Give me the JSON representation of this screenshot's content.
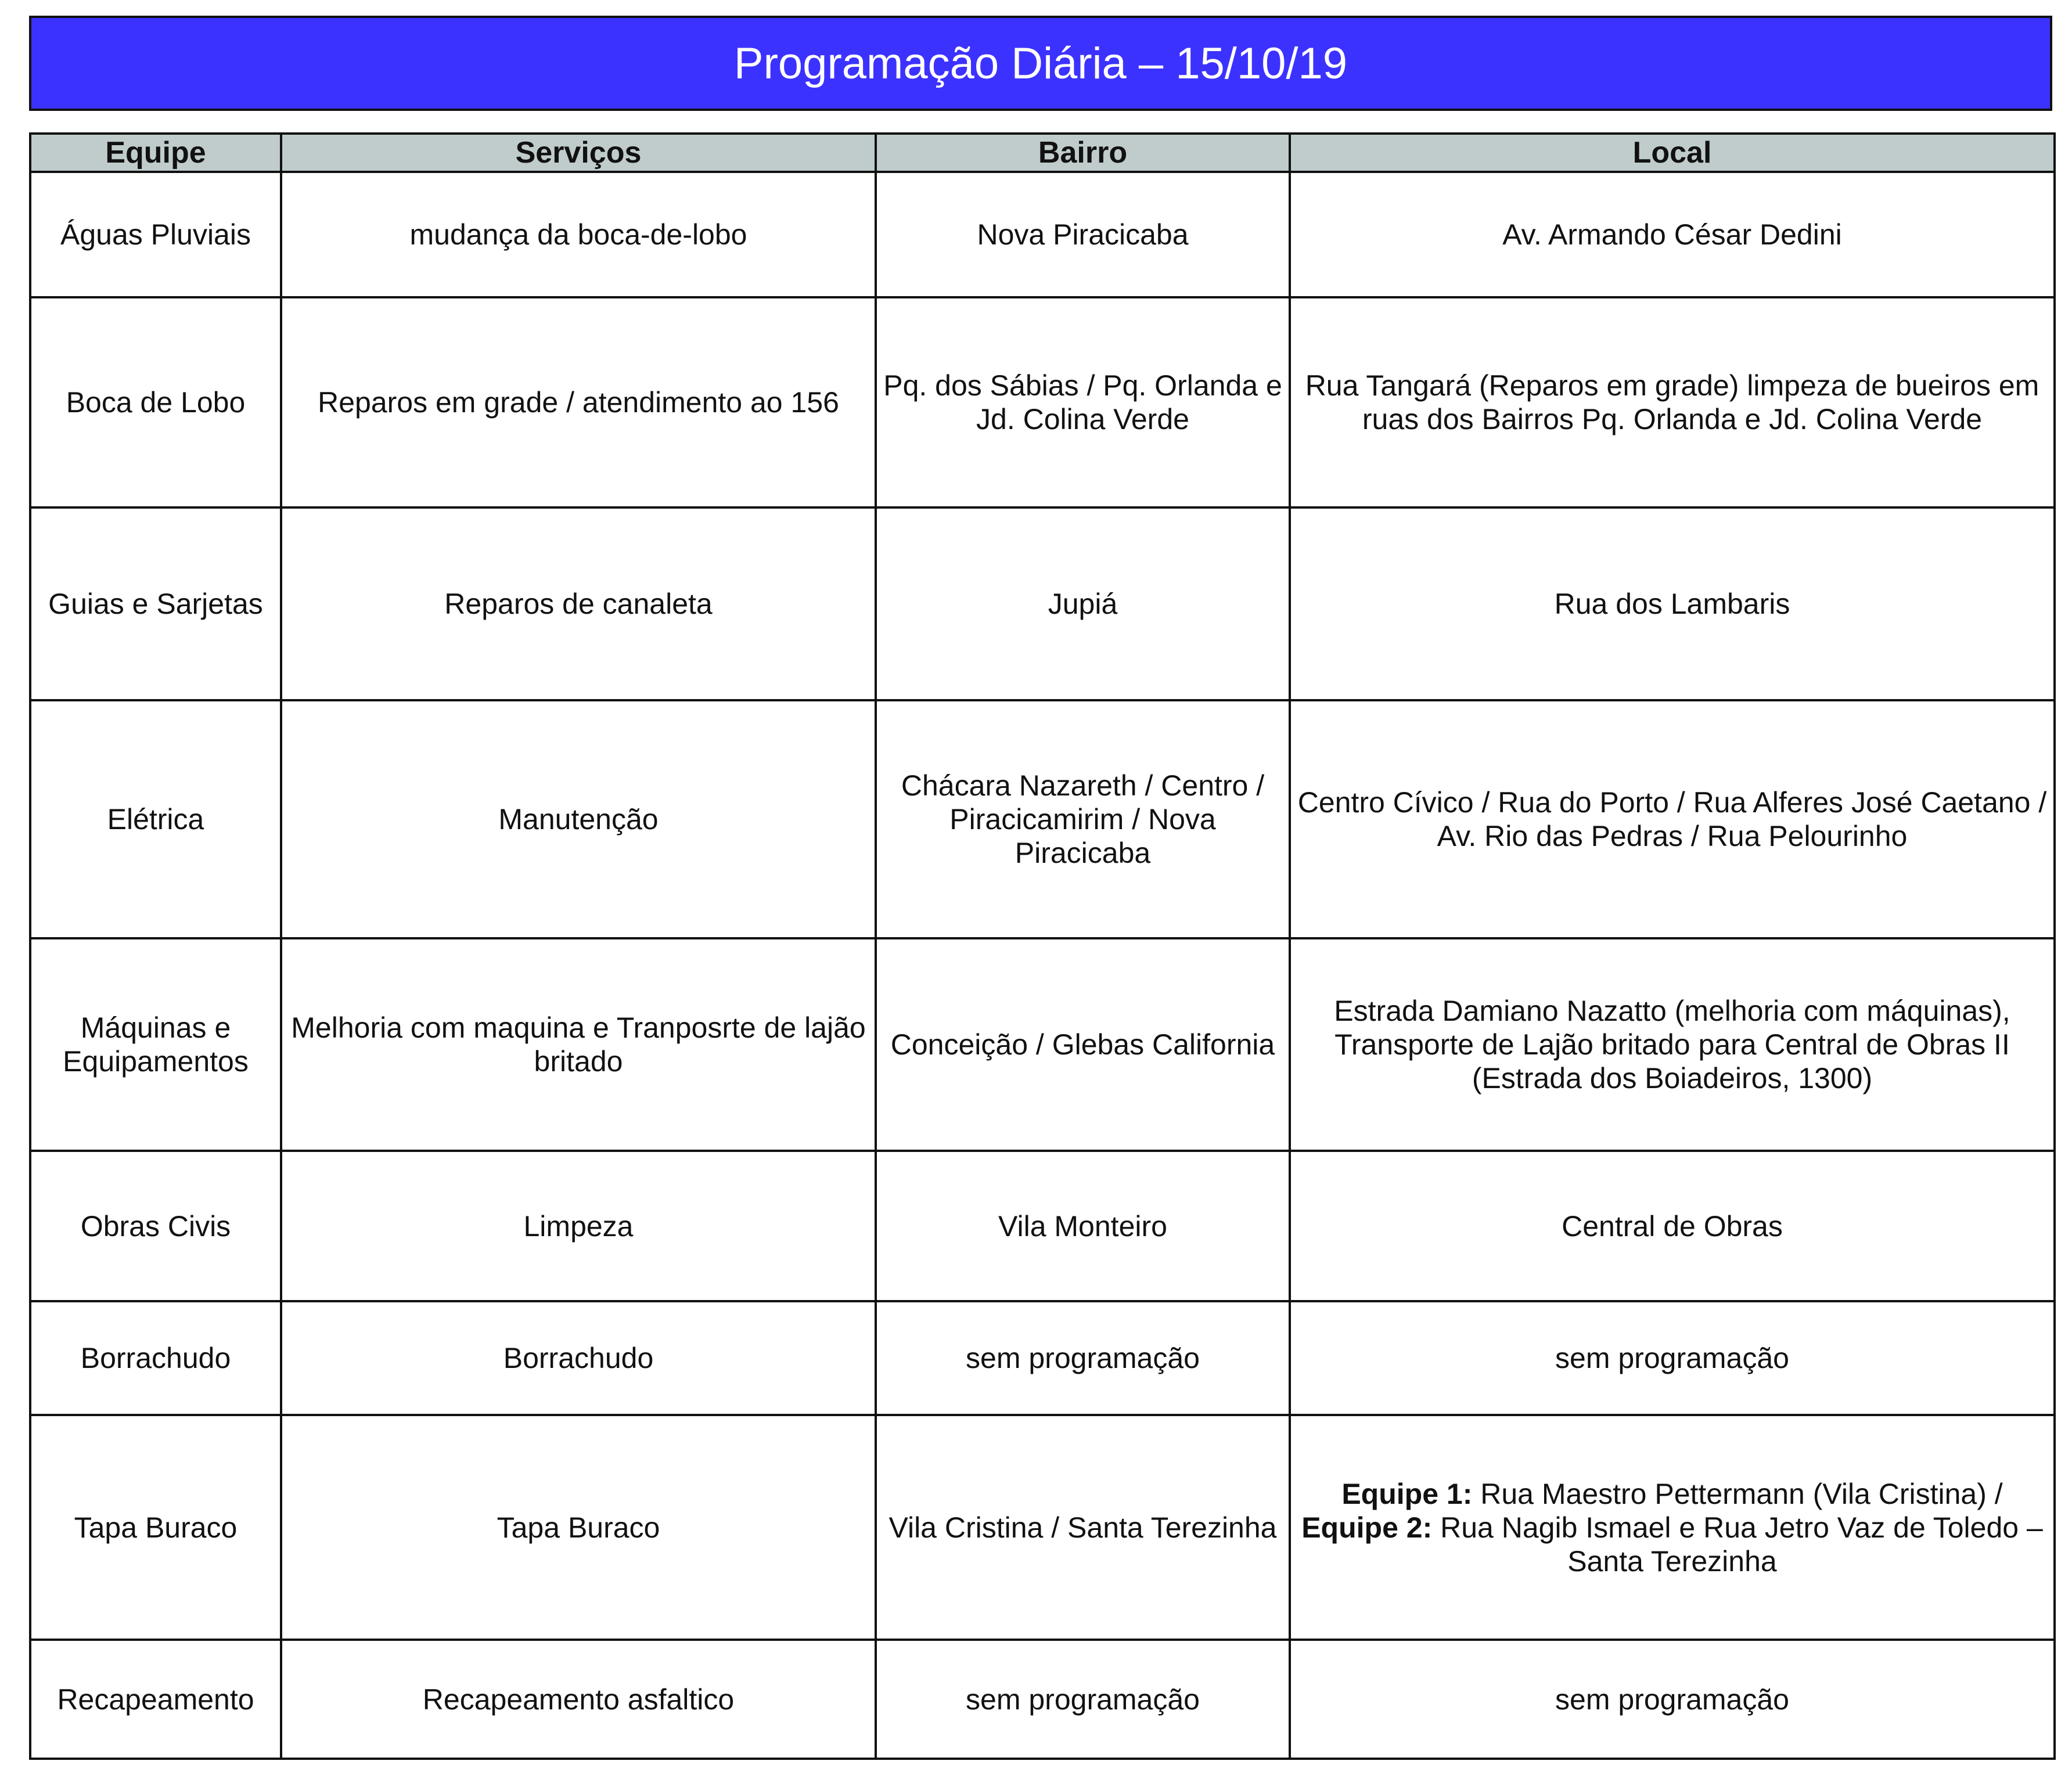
{
  "title": "Programação Diária – 15/10/19",
  "colors": {
    "title_bg": "#3c32ff",
    "header_bg": "#c0cccb"
  },
  "headers": [
    "Equipe",
    "Serviços",
    "Bairro",
    "Local"
  ],
  "rows": [
    {
      "equipe": "Águas Pluviais",
      "servicos": "mudança da boca-de-lobo",
      "bairro": "Nova Piracicaba",
      "local": "Av. Armando César Dedini"
    },
    {
      "equipe": "Boca de Lobo",
      "servicos": "Reparos em grade / atendimento ao 156",
      "bairro": "Pq. dos Sábias / Pq. Orlanda e Jd. Colina Verde",
      "local": "Rua Tangará (Reparos em grade) limpeza de bueiros em ruas dos Bairros Pq. Orlanda e Jd. Colina Verde"
    },
    {
      "equipe": "Guias e Sarjetas",
      "servicos": "Reparos de canaleta",
      "bairro": "Jupiá",
      "local": "Rua dos Lambaris"
    },
    {
      "equipe": "Elétrica",
      "servicos": "Manutenção",
      "bairro": "Chácara Nazareth / Centro / Piracicamirim / Nova Piracicaba",
      "local": "Centro Cívico / Rua do Porto / Rua Alferes José Caetano / Av. Rio das Pedras / Rua Pelourinho"
    },
    {
      "equipe": "Máquinas e Equipamentos",
      "servicos": "Melhoria com maquina e Tranposrte de lajão britado",
      "bairro": "Conceição / Glebas California",
      "local": "Estrada Damiano Nazatto (melhoria com máquinas), Transporte de Lajão britado para Central de Obras II (Estrada dos Boiadeiros, 1300)"
    },
    {
      "equipe": "Obras Civis",
      "servicos": "Limpeza",
      "bairro": "Vila Monteiro",
      "local": "Central de Obras"
    },
    {
      "equipe": "Borrachudo",
      "servicos": "Borrachudo",
      "bairro": "sem programação",
      "local": "sem programação"
    },
    {
      "equipe": "Tapa Buraco",
      "servicos": "Tapa Buraco",
      "bairro": "Vila Cristina / Santa Terezinha",
      "local_parts": {
        "label1": "Equipe 1:",
        "text1": " Rua Maestro Pettermann (Vila Cristina) /",
        "label2": "Equipe 2:",
        "text2": " Rua Nagib Ismael e Rua Jetro Vaz de Toledo – Santa Terezinha"
      }
    },
    {
      "equipe": "Recapeamento",
      "servicos": "Recapeamento asfaltico",
      "bairro": "sem programação",
      "local": "sem programação"
    }
  ]
}
